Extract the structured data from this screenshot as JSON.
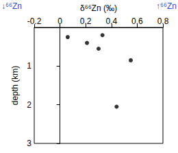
{
  "chart_data": {
    "type": "scatter",
    "x_label": "δ⁶⁶Zn (‰)",
    "y_label": "depth (km)",
    "annotations": [
      "↓⁶⁶Zn",
      "↑⁶⁶Zn"
    ],
    "x": [
      0.06,
      0.21,
      0.33,
      0.3,
      0.55,
      0.44
    ],
    "values": [
      0.25,
      0.4,
      0.2,
      0.55,
      0.85,
      2.05
    ],
    "color": "#000000",
    "xlim": [
      -0.2,
      0.8
    ],
    "xticks": [
      -0.2,
      0,
      0.2,
      0.4,
      0.6,
      0.8
    ],
    "ylim": [
      0,
      3
    ],
    "yticks": [
      1,
      2,
      3
    ],
    "grid": false
  }
}
